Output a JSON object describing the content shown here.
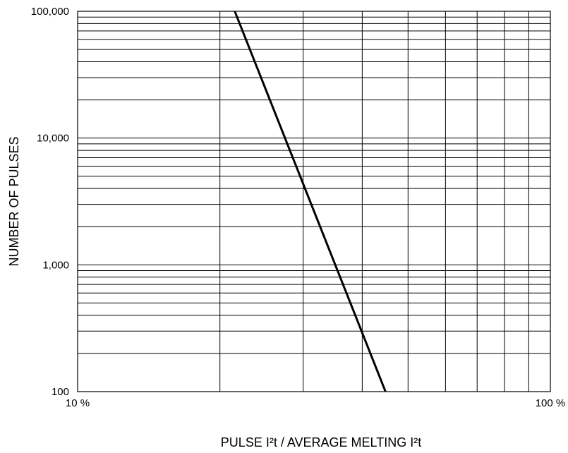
{
  "chart_data": {
    "type": "line",
    "title": "",
    "xlabel": "PULSE I²t / AVERAGE MELTING I²t",
    "ylabel": "NUMBER OF PULSES",
    "x_scale": "log",
    "y_scale": "log",
    "xlim": [
      10,
      100
    ],
    "ylim": [
      100,
      100000
    ],
    "x_tick_labels": [
      "10 %",
      "100 %"
    ],
    "x_tick_values": [
      10,
      100
    ],
    "y_tick_labels": [
      "100",
      "1,000",
      "10,000",
      "100,000"
    ],
    "y_tick_values": [
      100,
      1000,
      10000,
      100000
    ],
    "grid": true,
    "series": [
      {
        "x": [
          21.5,
          44.8
        ],
        "y": [
          100000,
          100
        ],
        "color": "#000000"
      }
    ]
  }
}
